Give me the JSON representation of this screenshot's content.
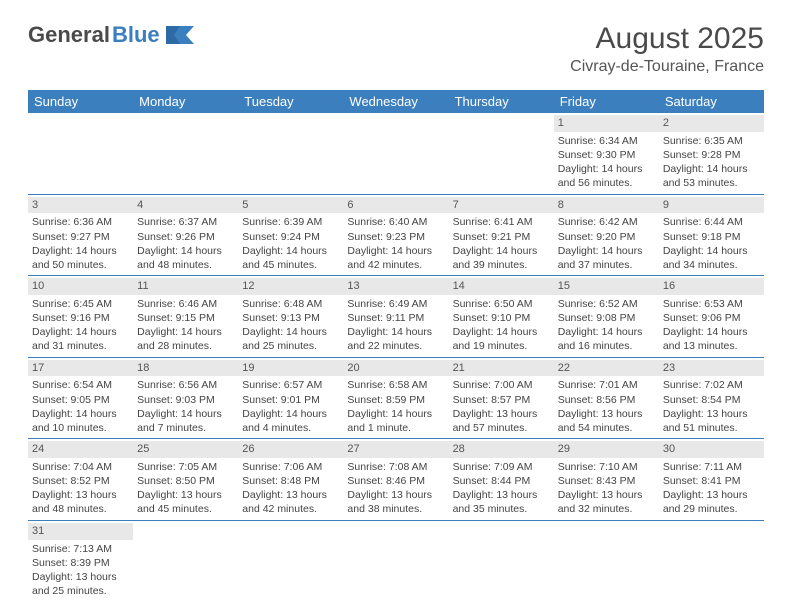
{
  "brand": {
    "part1": "General",
    "part2": "Blue"
  },
  "title": {
    "month": "August 2025",
    "location": "Civray-de-Touraine, France"
  },
  "weekdays": [
    "Sunday",
    "Monday",
    "Tuesday",
    "Wednesday",
    "Thursday",
    "Friday",
    "Saturday"
  ],
  "colors": {
    "header_bg": "#3b7fbf",
    "daynum_bg": "#e8e8e8",
    "rule": "#3b7fbf"
  },
  "grid": [
    [
      null,
      null,
      null,
      null,
      null,
      {
        "n": "1",
        "sr": "6:34 AM",
        "ss": "9:30 PM",
        "dl": "14 hours and 56 minutes."
      },
      {
        "n": "2",
        "sr": "6:35 AM",
        "ss": "9:28 PM",
        "dl": "14 hours and 53 minutes."
      }
    ],
    [
      {
        "n": "3",
        "sr": "6:36 AM",
        "ss": "9:27 PM",
        "dl": "14 hours and 50 minutes."
      },
      {
        "n": "4",
        "sr": "6:37 AM",
        "ss": "9:26 PM",
        "dl": "14 hours and 48 minutes."
      },
      {
        "n": "5",
        "sr": "6:39 AM",
        "ss": "9:24 PM",
        "dl": "14 hours and 45 minutes."
      },
      {
        "n": "6",
        "sr": "6:40 AM",
        "ss": "9:23 PM",
        "dl": "14 hours and 42 minutes."
      },
      {
        "n": "7",
        "sr": "6:41 AM",
        "ss": "9:21 PM",
        "dl": "14 hours and 39 minutes."
      },
      {
        "n": "8",
        "sr": "6:42 AM",
        "ss": "9:20 PM",
        "dl": "14 hours and 37 minutes."
      },
      {
        "n": "9",
        "sr": "6:44 AM",
        "ss": "9:18 PM",
        "dl": "14 hours and 34 minutes."
      }
    ],
    [
      {
        "n": "10",
        "sr": "6:45 AM",
        "ss": "9:16 PM",
        "dl": "14 hours and 31 minutes."
      },
      {
        "n": "11",
        "sr": "6:46 AM",
        "ss": "9:15 PM",
        "dl": "14 hours and 28 minutes."
      },
      {
        "n": "12",
        "sr": "6:48 AM",
        "ss": "9:13 PM",
        "dl": "14 hours and 25 minutes."
      },
      {
        "n": "13",
        "sr": "6:49 AM",
        "ss": "9:11 PM",
        "dl": "14 hours and 22 minutes."
      },
      {
        "n": "14",
        "sr": "6:50 AM",
        "ss": "9:10 PM",
        "dl": "14 hours and 19 minutes."
      },
      {
        "n": "15",
        "sr": "6:52 AM",
        "ss": "9:08 PM",
        "dl": "14 hours and 16 minutes."
      },
      {
        "n": "16",
        "sr": "6:53 AM",
        "ss": "9:06 PM",
        "dl": "14 hours and 13 minutes."
      }
    ],
    [
      {
        "n": "17",
        "sr": "6:54 AM",
        "ss": "9:05 PM",
        "dl": "14 hours and 10 minutes."
      },
      {
        "n": "18",
        "sr": "6:56 AM",
        "ss": "9:03 PM",
        "dl": "14 hours and 7 minutes."
      },
      {
        "n": "19",
        "sr": "6:57 AM",
        "ss": "9:01 PM",
        "dl": "14 hours and 4 minutes."
      },
      {
        "n": "20",
        "sr": "6:58 AM",
        "ss": "8:59 PM",
        "dl": "14 hours and 1 minute."
      },
      {
        "n": "21",
        "sr": "7:00 AM",
        "ss": "8:57 PM",
        "dl": "13 hours and 57 minutes."
      },
      {
        "n": "22",
        "sr": "7:01 AM",
        "ss": "8:56 PM",
        "dl": "13 hours and 54 minutes."
      },
      {
        "n": "23",
        "sr": "7:02 AM",
        "ss": "8:54 PM",
        "dl": "13 hours and 51 minutes."
      }
    ],
    [
      {
        "n": "24",
        "sr": "7:04 AM",
        "ss": "8:52 PM",
        "dl": "13 hours and 48 minutes."
      },
      {
        "n": "25",
        "sr": "7:05 AM",
        "ss": "8:50 PM",
        "dl": "13 hours and 45 minutes."
      },
      {
        "n": "26",
        "sr": "7:06 AM",
        "ss": "8:48 PM",
        "dl": "13 hours and 42 minutes."
      },
      {
        "n": "27",
        "sr": "7:08 AM",
        "ss": "8:46 PM",
        "dl": "13 hours and 38 minutes."
      },
      {
        "n": "28",
        "sr": "7:09 AM",
        "ss": "8:44 PM",
        "dl": "13 hours and 35 minutes."
      },
      {
        "n": "29",
        "sr": "7:10 AM",
        "ss": "8:43 PM",
        "dl": "13 hours and 32 minutes."
      },
      {
        "n": "30",
        "sr": "7:11 AM",
        "ss": "8:41 PM",
        "dl": "13 hours and 29 minutes."
      }
    ],
    [
      {
        "n": "31",
        "sr": "7:13 AM",
        "ss": "8:39 PM",
        "dl": "13 hours and 25 minutes."
      },
      null,
      null,
      null,
      null,
      null,
      null
    ]
  ]
}
